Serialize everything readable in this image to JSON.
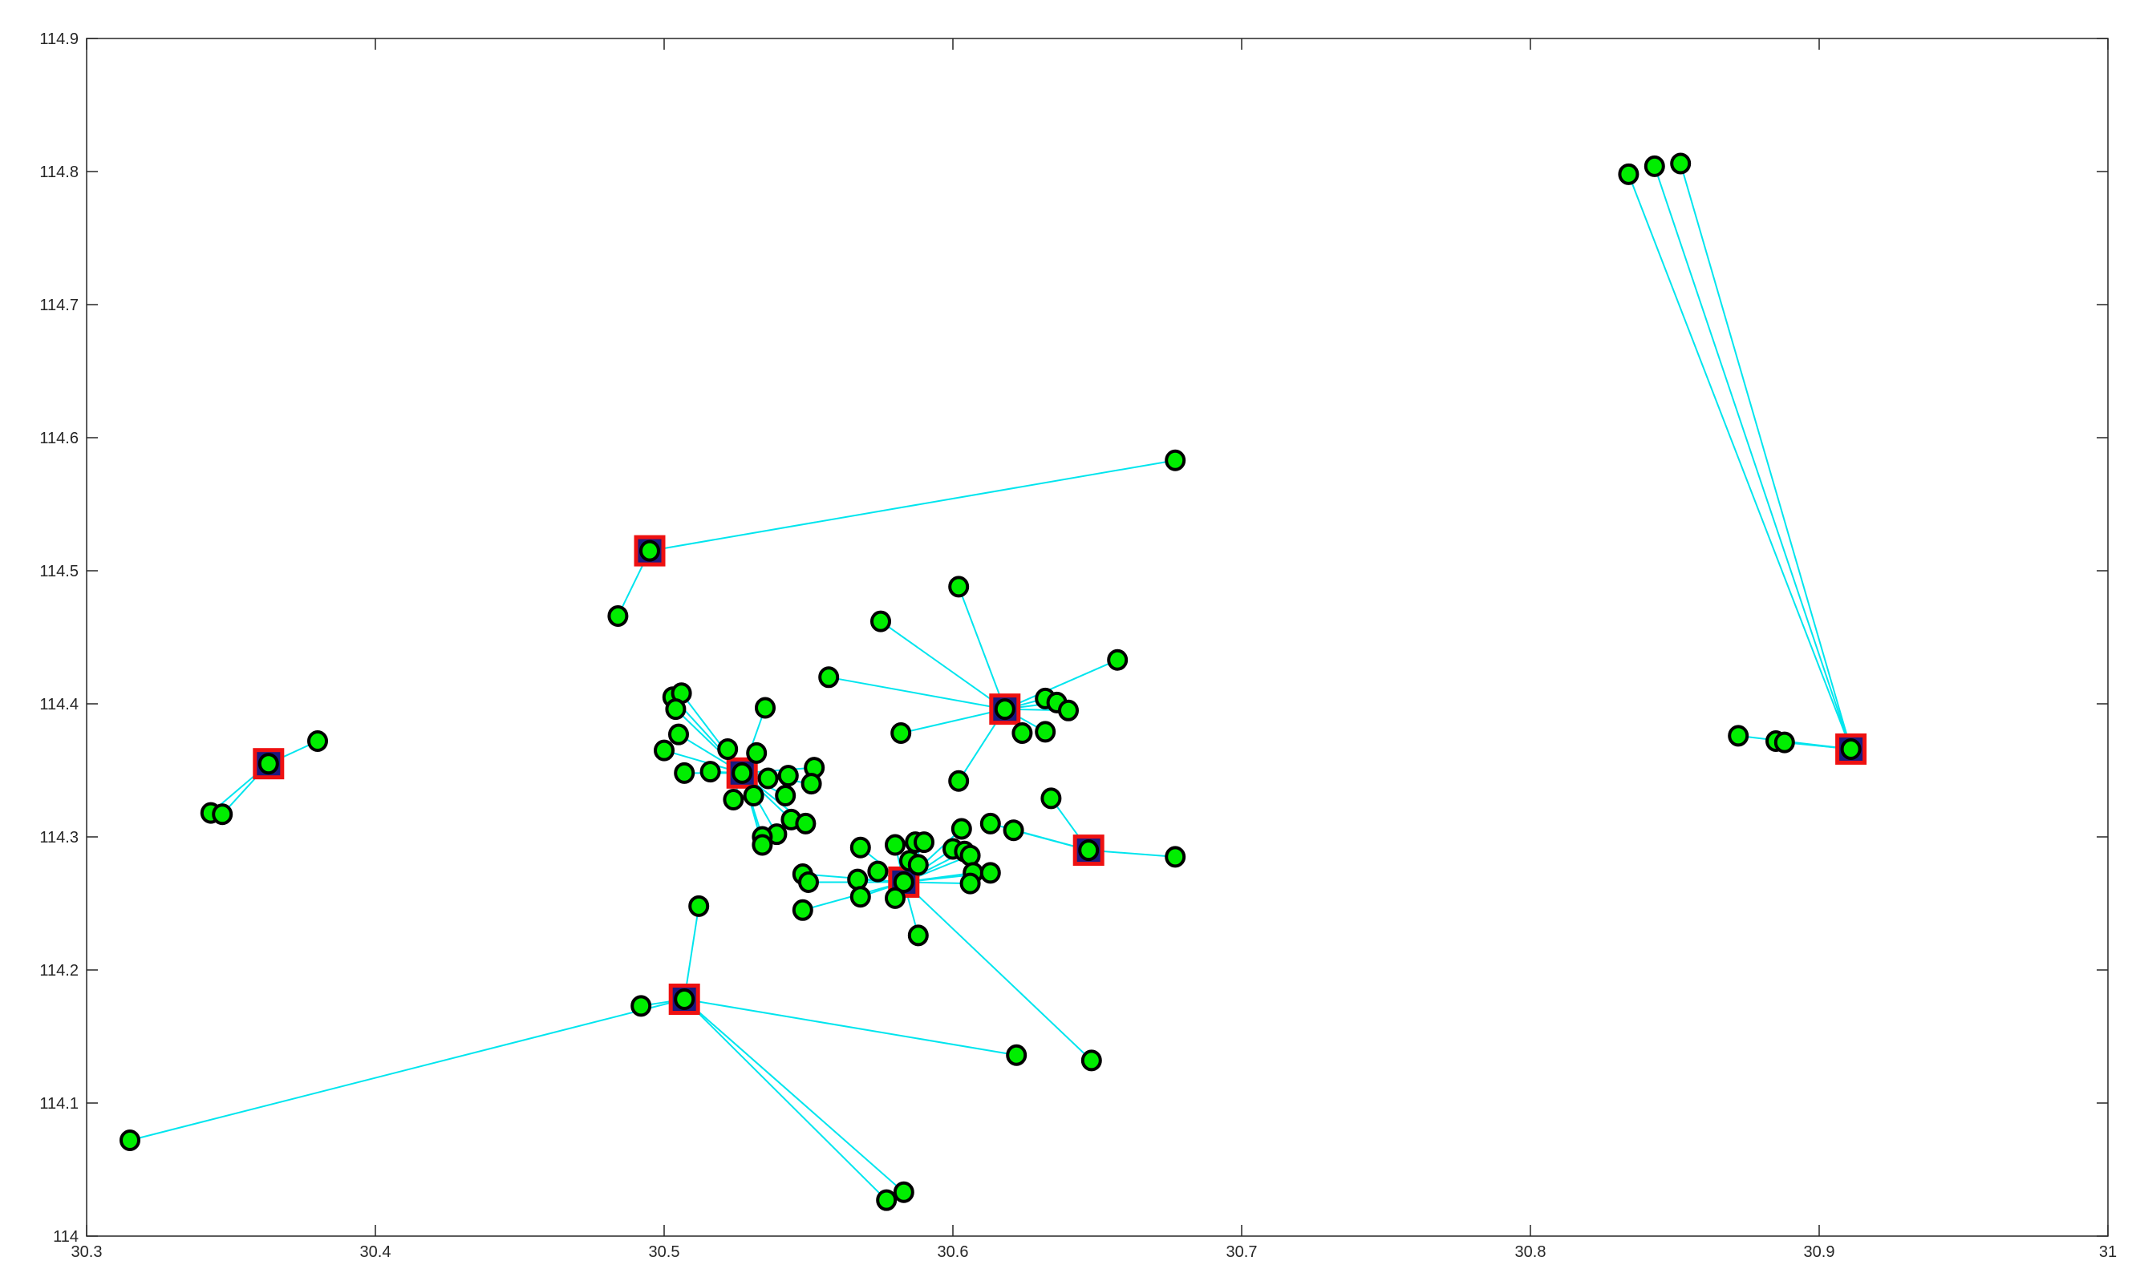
{
  "chart_data": {
    "type": "scatter",
    "title": "",
    "xlabel": "",
    "ylabel": "",
    "xlim": [
      30.3,
      31
    ],
    "ylim": [
      114,
      114.9
    ],
    "xticks": [
      30.3,
      30.4,
      30.5,
      30.6,
      30.7,
      30.8,
      30.9,
      31
    ],
    "yticks": [
      114,
      114.1,
      114.2,
      114.3,
      114.4,
      114.5,
      114.6,
      114.7,
      114.8,
      114.9
    ],
    "xtick_labels": [
      "30.3",
      "30.4",
      "30.5",
      "30.6",
      "30.7",
      "30.8",
      "30.9",
      "31"
    ],
    "ytick_labels": [
      "114",
      "114.1",
      "114.2",
      "114.3",
      "114.4",
      "114.5",
      "114.6",
      "114.7",
      "114.8",
      "114.9"
    ],
    "grid": false,
    "colors": {
      "point_fill": "#00ee00",
      "point_edge": "#000000",
      "center_fill": "#1a1a80",
      "center_edge": "#ee1111",
      "link": "#00e5ee",
      "axis": "#262626"
    },
    "clusters": [
      {
        "center": [
          30.363,
          114.355
        ],
        "points": [
          [
            30.363,
            114.355
          ],
          [
            30.38,
            114.372
          ],
          [
            30.343,
            114.318
          ],
          [
            30.347,
            114.317
          ]
        ]
      },
      {
        "center": [
          30.495,
          114.515
        ],
        "points": [
          [
            30.495,
            114.515
          ],
          [
            30.677,
            114.583
          ],
          [
            30.484,
            114.466
          ]
        ]
      },
      {
        "center": [
          30.507,
          114.178
        ],
        "points": [
          [
            30.507,
            114.178
          ],
          [
            30.315,
            114.072
          ],
          [
            30.492,
            114.173
          ],
          [
            30.512,
            114.248
          ],
          [
            30.622,
            114.136
          ],
          [
            30.577,
            114.027
          ],
          [
            30.583,
            114.033
          ]
        ]
      },
      {
        "center": [
          30.527,
          114.348
        ],
        "points": [
          [
            30.527,
            114.348
          ],
          [
            30.503,
            114.405
          ],
          [
            30.506,
            114.408
          ],
          [
            30.504,
            114.396
          ],
          [
            30.505,
            114.377
          ],
          [
            30.5,
            114.365
          ],
          [
            30.507,
            114.348
          ],
          [
            30.516,
            114.349
          ],
          [
            30.522,
            114.366
          ],
          [
            30.535,
            114.397
          ],
          [
            30.532,
            114.363
          ],
          [
            30.536,
            114.344
          ],
          [
            30.543,
            114.346
          ],
          [
            30.552,
            114.352
          ],
          [
            30.551,
            114.34
          ],
          [
            30.524,
            114.328
          ],
          [
            30.531,
            114.331
          ],
          [
            30.542,
            114.331
          ],
          [
            30.544,
            114.313
          ],
          [
            30.549,
            114.31
          ],
          [
            30.539,
            114.302
          ],
          [
            30.534,
            114.3
          ],
          [
            30.534,
            114.294
          ]
        ]
      },
      {
        "center": [
          30.583,
          114.266
        ],
        "points": [
          [
            30.583,
            114.266
          ],
          [
            30.548,
            114.272
          ],
          [
            30.55,
            114.266
          ],
          [
            30.548,
            114.245
          ],
          [
            30.568,
            114.292
          ],
          [
            30.567,
            114.268
          ],
          [
            30.574,
            114.274
          ],
          [
            30.568,
            114.255
          ],
          [
            30.58,
            114.294
          ],
          [
            30.585,
            114.282
          ],
          [
            30.587,
            114.296
          ],
          [
            30.59,
            114.296
          ],
          [
            30.58,
            114.254
          ],
          [
            30.588,
            114.226
          ],
          [
            30.588,
            114.279
          ],
          [
            30.6,
            114.291
          ],
          [
            30.603,
            114.306
          ],
          [
            30.604,
            114.289
          ],
          [
            30.606,
            114.286
          ],
          [
            30.607,
            114.273
          ],
          [
            30.606,
            114.265
          ],
          [
            30.613,
            114.273
          ],
          [
            30.648,
            114.132
          ]
        ]
      },
      {
        "center": [
          30.618,
          114.396
        ],
        "points": [
          [
            30.618,
            114.396
          ],
          [
            30.575,
            114.462
          ],
          [
            30.602,
            114.488
          ],
          [
            30.557,
            114.42
          ],
          [
            30.582,
            114.378
          ],
          [
            30.602,
            114.342
          ],
          [
            30.624,
            114.378
          ],
          [
            30.632,
            114.379
          ],
          [
            30.632,
            114.404
          ],
          [
            30.636,
            114.401
          ],
          [
            30.64,
            114.395
          ],
          [
            30.657,
            114.433
          ]
        ]
      },
      {
        "center": [
          30.647,
          114.29
        ],
        "points": [
          [
            30.647,
            114.29
          ],
          [
            30.613,
            114.31
          ],
          [
            30.621,
            114.305
          ],
          [
            30.634,
            114.329
          ],
          [
            30.677,
            114.285
          ]
        ]
      },
      {
        "center": [
          30.911,
          114.366
        ],
        "points": [
          [
            30.911,
            114.366
          ],
          [
            30.834,
            114.798
          ],
          [
            30.843,
            114.804
          ],
          [
            30.852,
            114.806
          ],
          [
            30.872,
            114.376
          ],
          [
            30.885,
            114.372
          ],
          [
            30.888,
            114.371
          ]
        ]
      }
    ]
  }
}
